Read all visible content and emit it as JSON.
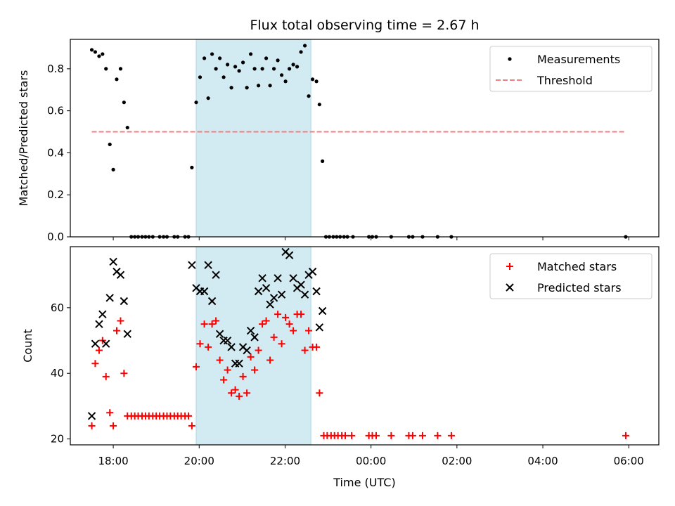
{
  "chart_data": [
    {
      "type": "scatter",
      "title": "Flux total observing time = 2.67 h",
      "xlabel": "",
      "ylabel": "Matched/Predicted stars",
      "ylim": [
        0,
        0.94
      ],
      "yticks": [
        "0.0",
        "0.2",
        "0.4",
        "0.6",
        "0.8"
      ],
      "ytick_values": [
        0.0,
        0.2,
        0.4,
        0.6,
        0.8
      ],
      "xlim_hours": [
        17.0,
        30.7
      ],
      "shaded_interval_hours": [
        19.93,
        22.6
      ],
      "shade_color": "#add8e6",
      "legend": {
        "placement": "top-right",
        "entries": [
          "Measurements",
          "Threshold"
        ]
      },
      "threshold": {
        "name": "Threshold",
        "value": 0.5,
        "x_range_hours": [
          17.5,
          29.93
        ],
        "color": "#f08080"
      },
      "series": [
        {
          "name": "Measurements",
          "marker": "dot",
          "color": "#000000",
          "points": [
            [
              17.5,
              0.89
            ],
            [
              17.58,
              0.88
            ],
            [
              17.67,
              0.86
            ],
            [
              17.75,
              0.87
            ],
            [
              17.83,
              0.8
            ],
            [
              17.92,
              0.44
            ],
            [
              18.0,
              0.32
            ],
            [
              18.08,
              0.75
            ],
            [
              18.17,
              0.8
            ],
            [
              18.25,
              0.64
            ],
            [
              18.33,
              0.52
            ],
            [
              18.42,
              0.0
            ],
            [
              18.5,
              0.0
            ],
            [
              18.58,
              0.0
            ],
            [
              18.67,
              0.0
            ],
            [
              18.75,
              0.0
            ],
            [
              18.83,
              0.0
            ],
            [
              18.92,
              0.0
            ],
            [
              19.08,
              0.0
            ],
            [
              19.17,
              0.0
            ],
            [
              19.25,
              0.0
            ],
            [
              19.42,
              0.0
            ],
            [
              19.5,
              0.0
            ],
            [
              19.67,
              0.0
            ],
            [
              19.75,
              0.0
            ],
            [
              19.83,
              0.33
            ],
            [
              19.93,
              0.64
            ],
            [
              20.02,
              0.76
            ],
            [
              20.12,
              0.85
            ],
            [
              20.21,
              0.66
            ],
            [
              20.3,
              0.87
            ],
            [
              20.39,
              0.8
            ],
            [
              20.48,
              0.85
            ],
            [
              20.57,
              0.76
            ],
            [
              20.66,
              0.82
            ],
            [
              20.75,
              0.71
            ],
            [
              20.84,
              0.81
            ],
            [
              20.93,
              0.79
            ],
            [
              21.02,
              0.83
            ],
            [
              21.11,
              0.71
            ],
            [
              21.2,
              0.87
            ],
            [
              21.29,
              0.8
            ],
            [
              21.38,
              0.72
            ],
            [
              21.47,
              0.8
            ],
            [
              21.56,
              0.85
            ],
            [
              21.65,
              0.72
            ],
            [
              21.74,
              0.8
            ],
            [
              21.83,
              0.84
            ],
            [
              21.92,
              0.77
            ],
            [
              22.01,
              0.74
            ],
            [
              22.1,
              0.8
            ],
            [
              22.19,
              0.82
            ],
            [
              22.28,
              0.81
            ],
            [
              22.37,
              0.88
            ],
            [
              22.46,
              0.91
            ],
            [
              22.55,
              0.67
            ],
            [
              22.64,
              0.75
            ],
            [
              22.73,
              0.74
            ],
            [
              22.8,
              0.63
            ],
            [
              22.87,
              0.36
            ],
            [
              22.95,
              0.0
            ],
            [
              23.03,
              0.0
            ],
            [
              23.12,
              0.0
            ],
            [
              23.2,
              0.0
            ],
            [
              23.28,
              0.0
            ],
            [
              23.37,
              0.0
            ],
            [
              23.45,
              0.0
            ],
            [
              23.58,
              0.0
            ],
            [
              23.95,
              0.0
            ],
            [
              24.03,
              0.0
            ],
            [
              24.12,
              0.0
            ],
            [
              24.47,
              0.0
            ],
            [
              24.88,
              0.0
            ],
            [
              24.97,
              0.0
            ],
            [
              25.2,
              0.0
            ],
            [
              25.55,
              0.0
            ],
            [
              25.87,
              0.0
            ],
            [
              29.93,
              0.0
            ]
          ]
        }
      ]
    },
    {
      "type": "scatter",
      "title": "",
      "xlabel": "Time (UTC)",
      "ylabel": "Count",
      "ylim": [
        18.2,
        78.6
      ],
      "yticks": [
        "20",
        "40",
        "60"
      ],
      "ytick_values": [
        20,
        40,
        60
      ],
      "xlim_hours": [
        17.0,
        30.7
      ],
      "xticks": [
        "18:00",
        "20:00",
        "22:00",
        "00:00",
        "02:00",
        "04:00",
        "06:00"
      ],
      "xtick_hours": [
        18,
        20,
        22,
        24,
        26,
        28,
        30
      ],
      "shaded_interval_hours": [
        19.93,
        22.6
      ],
      "shade_color": "#add8e6",
      "legend": {
        "placement": "top-right",
        "entries": [
          "Matched stars",
          "Predicted stars"
        ]
      },
      "series": [
        {
          "name": "Matched stars",
          "marker": "plus",
          "color": "#ff0000",
          "points": [
            [
              17.5,
              24
            ],
            [
              17.58,
              43
            ],
            [
              17.67,
              47
            ],
            [
              17.75,
              50
            ],
            [
              17.83,
              39
            ],
            [
              17.92,
              28
            ],
            [
              18.0,
              24
            ],
            [
              18.08,
              53
            ],
            [
              18.17,
              56
            ],
            [
              18.25,
              40
            ],
            [
              18.33,
              27
            ],
            [
              18.42,
              27
            ],
            [
              18.5,
              27
            ],
            [
              18.58,
              27
            ],
            [
              18.67,
              27
            ],
            [
              18.75,
              27
            ],
            [
              18.83,
              27
            ],
            [
              18.92,
              27
            ],
            [
              19.0,
              27
            ],
            [
              19.08,
              27
            ],
            [
              19.17,
              27
            ],
            [
              19.25,
              27
            ],
            [
              19.33,
              27
            ],
            [
              19.42,
              27
            ],
            [
              19.5,
              27
            ],
            [
              19.58,
              27
            ],
            [
              19.67,
              27
            ],
            [
              19.75,
              27
            ],
            [
              19.83,
              24
            ],
            [
              19.93,
              42
            ],
            [
              20.02,
              49
            ],
            [
              20.12,
              55
            ],
            [
              20.21,
              48
            ],
            [
              20.3,
              55
            ],
            [
              20.39,
              56
            ],
            [
              20.48,
              44
            ],
            [
              20.57,
              38
            ],
            [
              20.66,
              41
            ],
            [
              20.75,
              34
            ],
            [
              20.84,
              35
            ],
            [
              20.93,
              33
            ],
            [
              21.02,
              39
            ],
            [
              21.11,
              34
            ],
            [
              21.2,
              45
            ],
            [
              21.29,
              41
            ],
            [
              21.38,
              47
            ],
            [
              21.47,
              55
            ],
            [
              21.56,
              56
            ],
            [
              21.65,
              44
            ],
            [
              21.74,
              51
            ],
            [
              21.83,
              58
            ],
            [
              21.92,
              49
            ],
            [
              22.01,
              57
            ],
            [
              22.1,
              55
            ],
            [
              22.19,
              53
            ],
            [
              22.28,
              58
            ],
            [
              22.37,
              58
            ],
            [
              22.46,
              47
            ],
            [
              22.55,
              53
            ],
            [
              22.64,
              48
            ],
            [
              22.73,
              48
            ],
            [
              22.8,
              34
            ],
            [
              22.9,
              21
            ],
            [
              22.98,
              21
            ],
            [
              23.07,
              21
            ],
            [
              23.15,
              21
            ],
            [
              23.23,
              21
            ],
            [
              23.32,
              21
            ],
            [
              23.4,
              21
            ],
            [
              23.55,
              21
            ],
            [
              23.95,
              21
            ],
            [
              24.03,
              21
            ],
            [
              24.12,
              21
            ],
            [
              24.47,
              21
            ],
            [
              24.88,
              21
            ],
            [
              24.97,
              21
            ],
            [
              25.2,
              21
            ],
            [
              25.55,
              21
            ],
            [
              25.87,
              21
            ],
            [
              29.93,
              21
            ]
          ]
        },
        {
          "name": "Predicted stars",
          "marker": "x",
          "color": "#000000",
          "points": [
            [
              17.5,
              27
            ],
            [
              17.58,
              49
            ],
            [
              17.67,
              55
            ],
            [
              17.75,
              58
            ],
            [
              17.83,
              49
            ],
            [
              17.92,
              63
            ],
            [
              18.0,
              74
            ],
            [
              18.08,
              71
            ],
            [
              18.17,
              70
            ],
            [
              18.25,
              62
            ],
            [
              18.33,
              52
            ],
            [
              19.83,
              73
            ],
            [
              19.93,
              66
            ],
            [
              20.02,
              65
            ],
            [
              20.12,
              65
            ],
            [
              20.21,
              73
            ],
            [
              20.3,
              62
            ],
            [
              20.39,
              70
            ],
            [
              20.48,
              52
            ],
            [
              20.57,
              50
            ],
            [
              20.66,
              50
            ],
            [
              20.75,
              48
            ],
            [
              20.84,
              43
            ],
            [
              20.93,
              43
            ],
            [
              21.02,
              48
            ],
            [
              21.11,
              47
            ],
            [
              21.2,
              53
            ],
            [
              21.29,
              51
            ],
            [
              21.38,
              65
            ],
            [
              21.47,
              69
            ],
            [
              21.56,
              66
            ],
            [
              21.65,
              61
            ],
            [
              21.74,
              63
            ],
            [
              21.83,
              69
            ],
            [
              21.92,
              64
            ],
            [
              22.01,
              77
            ],
            [
              22.1,
              76
            ],
            [
              22.19,
              69
            ],
            [
              22.28,
              66
            ],
            [
              22.37,
              67
            ],
            [
              22.46,
              64
            ],
            [
              22.55,
              70
            ],
            [
              22.64,
              71
            ],
            [
              22.73,
              65
            ],
            [
              22.8,
              54
            ],
            [
              22.87,
              59
            ]
          ]
        }
      ]
    }
  ]
}
